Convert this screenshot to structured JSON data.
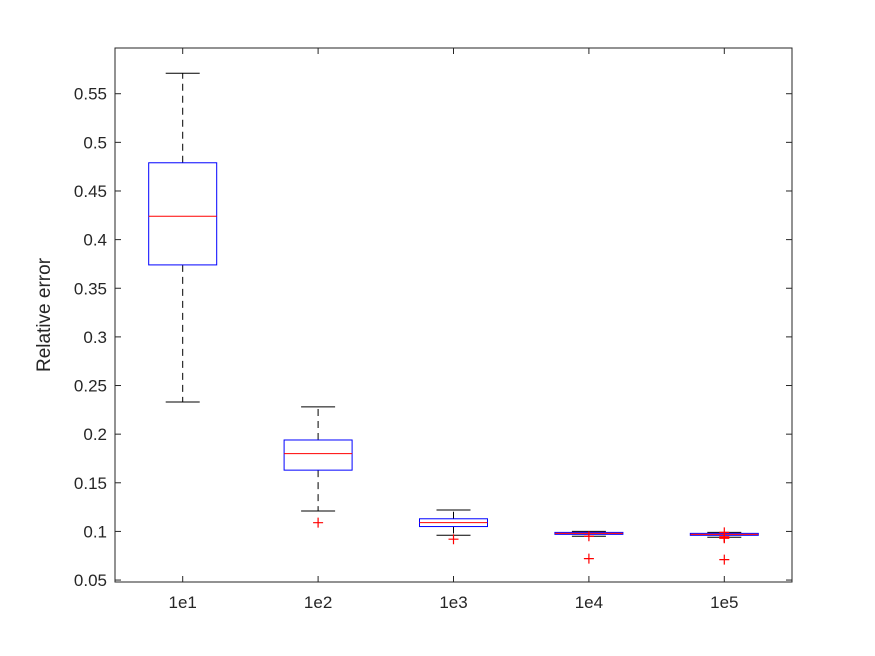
{
  "chart_data": {
    "type": "box",
    "title": "",
    "xlabel": "",
    "ylabel": "Relative error",
    "ylim": [
      0.048,
      0.597
    ],
    "yticks": [
      "0.05",
      "0.1",
      "0.15",
      "0.2",
      "0.25",
      "0.3",
      "0.35",
      "0.4",
      "0.45",
      "0.5",
      "0.55"
    ],
    "categories": [
      "1e1",
      "1e2",
      "1e3",
      "1e4",
      "1e5"
    ],
    "boxes": [
      {
        "category": "1e1",
        "whisker_low": 0.233,
        "q1": 0.374,
        "median": 0.424,
        "q3": 0.479,
        "whisker_high": 0.571,
        "outliers": []
      },
      {
        "category": "1e2",
        "whisker_low": 0.121,
        "q1": 0.163,
        "median": 0.18,
        "q3": 0.194,
        "whisker_high": 0.228,
        "outliers": [
          0.109
        ]
      },
      {
        "category": "1e3",
        "whisker_low": 0.096,
        "q1": 0.105,
        "median": 0.109,
        "q3": 0.113,
        "whisker_high": 0.122,
        "outliers": [
          0.092
        ]
      },
      {
        "category": "1e4",
        "whisker_low": 0.095,
        "q1": 0.097,
        "median": 0.098,
        "q3": 0.099,
        "whisker_high": 0.1,
        "outliers": [
          0.095,
          0.072
        ]
      },
      {
        "category": "1e5",
        "whisker_low": 0.094,
        "q1": 0.096,
        "median": 0.097,
        "q3": 0.098,
        "whisker_high": 0.099,
        "outliers": [
          0.094,
          0.0935,
          0.093,
          0.0945,
          0.099,
          0.071
        ]
      }
    ],
    "grid": false,
    "colors": {
      "box": "#0000ff",
      "median": "#ff0000",
      "whisker": "#000000",
      "outlier": "#ff0000",
      "axis": "#262626"
    }
  }
}
